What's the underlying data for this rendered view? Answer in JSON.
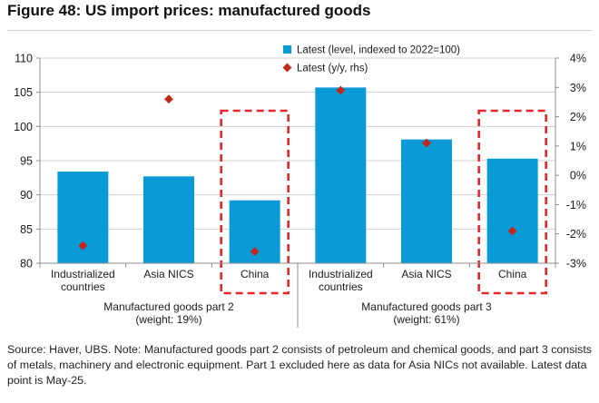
{
  "title": "Figure 48: US import prices: manufactured goods",
  "colors": {
    "bar": "#0a9ad6",
    "marker": "#c0281c",
    "highlight": "#e8262a",
    "axis": "#8c8c8c",
    "grid": "#d0d0d0"
  },
  "chart_data": {
    "type": "bar",
    "categories": [
      "Industrialized countries",
      "Asia NICS",
      "China",
      "Industrialized countries",
      "Asia NICS",
      "China"
    ],
    "category_lines": [
      [
        "Industrialized",
        "countries"
      ],
      [
        "Asia NICS"
      ],
      [
        "China"
      ],
      [
        "Industrialized",
        "countries"
      ],
      [
        "Asia NICS"
      ],
      [
        "China"
      ]
    ],
    "series": [
      {
        "name": "Latest (level, indexed to 2022=100)",
        "type": "bar",
        "axis": "left",
        "values": [
          93.4,
          92.7,
          89.2,
          105.7,
          98.1,
          95.3
        ]
      },
      {
        "name": "Latest (y/y, rhs)",
        "type": "marker",
        "axis": "right",
        "values": [
          -2.4,
          2.6,
          -2.6,
          2.9,
          1.1,
          -1.9
        ]
      }
    ],
    "y_left": {
      "min": 80,
      "max": 110,
      "ticks": [
        "80",
        "85",
        "90",
        "95",
        "100",
        "105",
        "110"
      ]
    },
    "y_right": {
      "min": -3,
      "max": 4,
      "ticks": [
        "-3%",
        "-2%",
        "-1%",
        "0%",
        "1%",
        "2%",
        "3%",
        "4%"
      ]
    },
    "groups": [
      {
        "line1": "Manufactured goods part 2",
        "line2": "(weight: 19%)"
      },
      {
        "line1": "Manufactured goods part 3",
        "line2": "(weight: 61%)"
      }
    ],
    "highlighted_categories": [
      2,
      5
    ],
    "legend": [
      "Latest (level, indexed to 2022=100)",
      "Latest (y/y, rhs)"
    ]
  },
  "source_note": "Source: Haver, UBS. Note: Manufactured goods part 2 consists of petroleum and chemical goods, and part 3 consists of metals, machinery and electronic equipment. Part 1 excluded here as data for Asia NICs not available. Latest data point is May-25."
}
